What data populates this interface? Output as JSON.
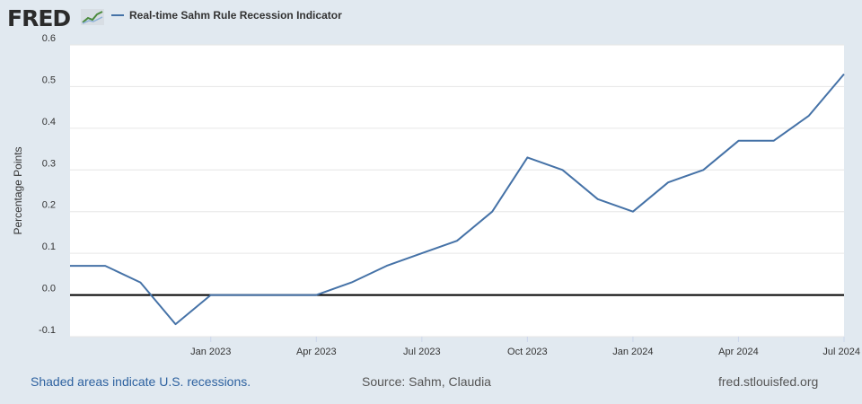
{
  "header": {
    "logo_text": "FRED",
    "logo_icon": "chart-trend-icon"
  },
  "chart_data": {
    "type": "line",
    "title": "Real-time Sahm Rule Recession Indicator",
    "ylabel": "Percentage Points",
    "xlabel": "",
    "ylim": [
      -0.1,
      0.6
    ],
    "yticks": [
      -0.1,
      0.0,
      0.1,
      0.2,
      0.3,
      0.4,
      0.5,
      0.6
    ],
    "ytick_labels": [
      "-0.1",
      "0.0",
      "0.1",
      "0.2",
      "0.3",
      "0.4",
      "0.5",
      "0.6"
    ],
    "xrange": [
      "2022-09",
      "2024-07"
    ],
    "xticks": [
      "2023-01",
      "2023-04",
      "2023-07",
      "2023-10",
      "2024-01",
      "2024-04",
      "2024-07"
    ],
    "xtick_labels": [
      "Jan 2023",
      "Apr 2023",
      "Jul 2023",
      "Oct 2023",
      "Jan 2024",
      "Apr 2024",
      "Jul 2024"
    ],
    "reference_line": 0.0,
    "series": [
      {
        "name": "Real-time Sahm Rule Recession Indicator",
        "color": "#4572a7",
        "x": [
          "2022-09",
          "2022-10",
          "2022-11",
          "2022-12",
          "2023-01",
          "2023-02",
          "2023-03",
          "2023-04",
          "2023-05",
          "2023-06",
          "2023-07",
          "2023-08",
          "2023-09",
          "2023-10",
          "2023-11",
          "2023-12",
          "2024-01",
          "2024-02",
          "2024-03",
          "2024-04",
          "2024-05",
          "2024-06",
          "2024-07"
        ],
        "values": [
          0.07,
          0.07,
          0.03,
          -0.07,
          0.0,
          0.0,
          0.0,
          0.0,
          0.03,
          0.07,
          0.1,
          0.13,
          0.2,
          0.33,
          0.3,
          0.23,
          0.2,
          0.27,
          0.3,
          0.37,
          0.37,
          0.43,
          0.53
        ]
      }
    ]
  },
  "footer": {
    "recession_note": "Shaded areas indicate U.S. recessions.",
    "source": "Source: Sahm, Claudia",
    "site": "fred.stlouisfed.org"
  }
}
